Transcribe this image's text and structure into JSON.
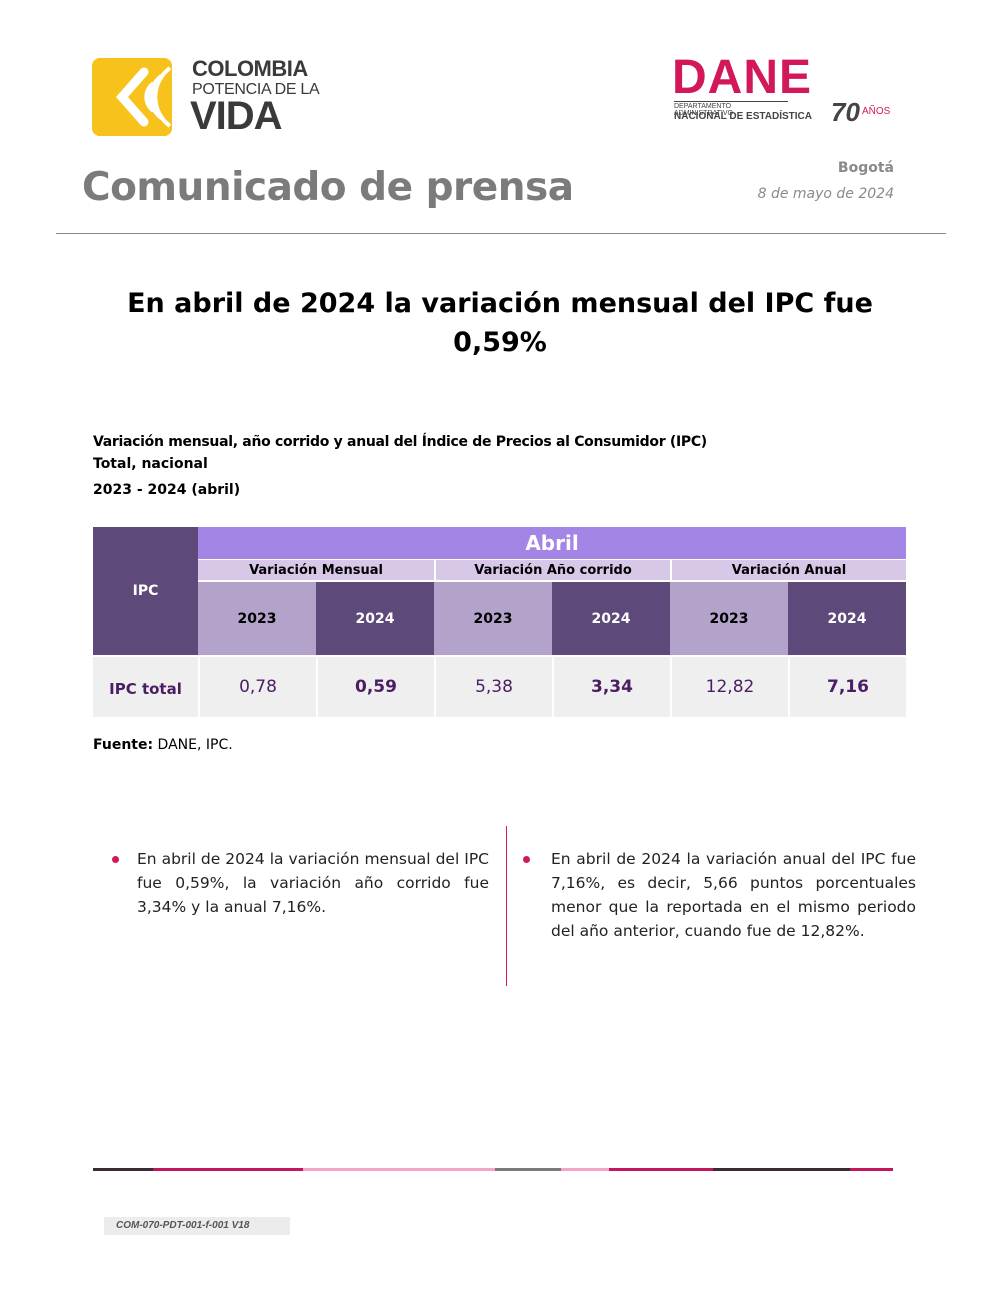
{
  "logos": {
    "colombia": {
      "line1": "COLOMBIA",
      "line2": "POTENCIA DE LA",
      "line3": "VIDA"
    },
    "dane": {
      "word": "DANE",
      "line1": "DEPARTAMENTO ADMINISTRATIVO",
      "line2": "NACIONAL DE ESTADÍSTICA",
      "seventy": "70",
      "anos": "AÑOS"
    }
  },
  "header": {
    "title": "Comunicado de prensa",
    "city": "Bogotá",
    "date": "8 de mayo de 2024"
  },
  "headline": "En abril de 2024 la variación mensual del IPC fue 0,59%",
  "caption": {
    "line1": "Variación mensual, año corrido y anual del Índice de Precios al Consumidor (IPC)",
    "line2": "Total, nacional",
    "line3": "2023 - 2024 (abril)"
  },
  "table": {
    "corner": "IPC",
    "month": "Abril",
    "groups": [
      "Variación Mensual",
      "Variación Año corrido",
      "Variación Anual"
    ],
    "years": [
      "2023",
      "2024",
      "2023",
      "2024",
      "2023",
      "2024"
    ],
    "row_label": "IPC total",
    "values": [
      "0,78",
      "0,59",
      "5,38",
      "3,34",
      "12,82",
      "7,16"
    ]
  },
  "source": {
    "label": "Fuente:",
    "text": " DANE, IPC."
  },
  "bullets": [
    "En abril de 2024 la variación mensual del IPC fue 0,59%, la variación año corrido fue 3,34% y la anual 7,16%.",
    "En abril de 2024 la variación anual del IPC fue 7,16%, es decir, 5,66 puntos porcentuales menor que la reportada en el mismo periodo del año anterior, cuando fue de 12,82%."
  ],
  "footer": {
    "doc_code": "COM-070-PDT-001-f-001 V18",
    "bar_colors": [
      "#3a2a33",
      "#c2185b",
      "#f5a3c7",
      "#7a7a7a",
      "#f5a3c7",
      "#c2185b",
      "#3a2a33",
      "#c2185b"
    ]
  },
  "colors": {
    "accent": "#d2185b",
    "table_dark": "#5e4a7a",
    "table_light": "#b3a3ca",
    "table_header": "#a385e6"
  }
}
